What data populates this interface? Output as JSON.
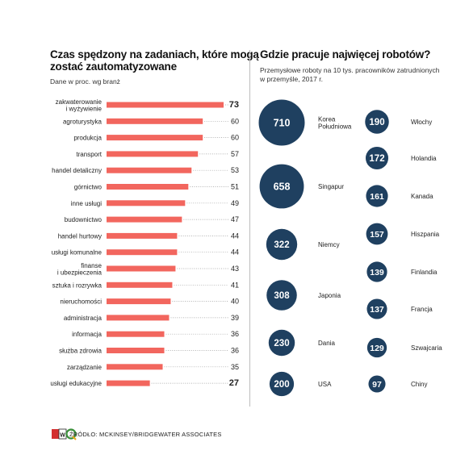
{
  "left": {
    "title_line1": "Czas spędzony na zadaniach, które mogą",
    "title_line2": "zostać zautomatyzowane",
    "subtitle": "Dane w proc. wg branż"
  },
  "right": {
    "title": "Gdzie pracuje najwięcej robotów?",
    "subtitle_line1": "Przemysłowe roboty na 10 tys. pracowników zatrudnionych",
    "subtitle_line2": "w przemyśle, 2017 r."
  },
  "footer": {
    "source": "ŹRÓDŁO: MCKINSEY/BRIDGEWATER ASSOCIATES"
  },
  "colors": {
    "bar": "#f2665e",
    "bubble": "#1f4060",
    "bubble_text": "#ffffff"
  },
  "chart_data": [
    {
      "type": "bar",
      "orientation": "horizontal",
      "categories": [
        [
          "zakwaterowanie",
          "i wyżywienie"
        ],
        [
          "agroturystyka"
        ],
        [
          "produkcja"
        ],
        [
          "transport"
        ],
        [
          "handel detaliczny"
        ],
        [
          "górnictwo"
        ],
        [
          "inne usługi"
        ],
        [
          "budownictwo"
        ],
        [
          "handel hurtowy"
        ],
        [
          "usługi komunalne"
        ],
        [
          "finanse",
          "i ubezpieczenia"
        ],
        [
          "sztuka i rozrywka"
        ],
        [
          "nieruchomości"
        ],
        [
          "administracja"
        ],
        [
          "informacja"
        ],
        [
          "służba zdrowia"
        ],
        [
          "zarządzanie"
        ],
        [
          "usługi edukacyjne"
        ]
      ],
      "values": [
        73,
        60,
        60,
        57,
        53,
        51,
        49,
        47,
        44,
        44,
        43,
        41,
        40,
        39,
        36,
        36,
        35,
        27
      ],
      "value_labels": [
        "73",
        "60",
        "60",
        "57",
        "53",
        "51",
        "49",
        "47",
        "44",
        "44",
        "43",
        "41",
        "40",
        "39",
        "36",
        "36",
        "35",
        "27"
      ],
      "xlim": [
        0,
        73
      ]
    },
    {
      "type": "bubble",
      "columns": 2,
      "points": [
        {
          "label": [
            "Korea",
            "Południowa"
          ],
          "value": 710,
          "value_label": "710"
        },
        {
          "label": [
            "Singapur"
          ],
          "value": 658,
          "value_label": "658"
        },
        {
          "label": [
            "Niemcy"
          ],
          "value": 322,
          "value_label": "322"
        },
        {
          "label": [
            "Japonia"
          ],
          "value": 308,
          "value_label": "308"
        },
        {
          "label": [
            "Dania"
          ],
          "value": 230,
          "value_label": "230"
        },
        {
          "label": [
            "USA"
          ],
          "value": 200,
          "value_label": "200"
        },
        {
          "label": [
            "Włochy"
          ],
          "value": 190,
          "value_label": "190"
        },
        {
          "label": [
            "Holandia"
          ],
          "value": 172,
          "value_label": "172"
        },
        {
          "label": [
            "Kanada"
          ],
          "value": 161,
          "value_label": "161"
        },
        {
          "label": [
            "Hiszpania"
          ],
          "value": 157,
          "value_label": "157"
        },
        {
          "label": [
            "Finlandia"
          ],
          "value": 139,
          "value_label": "139"
        },
        {
          "label": [
            "Francja"
          ],
          "value": 137,
          "value_label": "137"
        },
        {
          "label": [
            "Szwajcaria"
          ],
          "value": 129,
          "value_label": "129"
        },
        {
          "label": [
            "Chiny"
          ],
          "value": 97,
          "value_label": "97"
        }
      ]
    }
  ]
}
